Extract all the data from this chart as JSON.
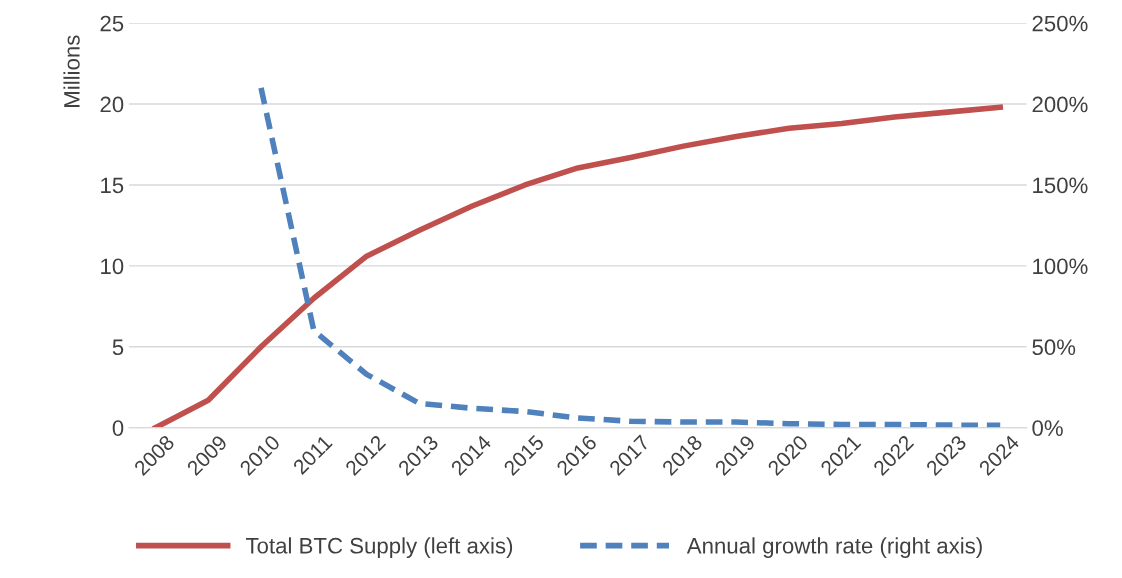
{
  "chart_data": {
    "type": "line",
    "ylabel": "Millions",
    "categories": [
      "2008",
      "2009",
      "2010",
      "2011",
      "2012",
      "2013",
      "2014",
      "2015",
      "2016",
      "2017",
      "2018",
      "2019",
      "2020",
      "2021",
      "2022",
      "2023",
      "2024"
    ],
    "series": [
      {
        "name": "Total BTC Supply (left axis)",
        "color": "#c0504d",
        "line_style": "solid",
        "values": [
          0,
          1.7,
          5.0,
          8.0,
          10.6,
          12.2,
          13.7,
          15.0,
          16.05,
          16.7,
          17.4,
          18.0,
          18.5,
          18.8,
          19.2,
          19.5,
          19.8
        ]
      },
      {
        "name": "Annual growth rate (right axis)",
        "color": "#4f81bd",
        "line_style": "dashed",
        "axis": "y2",
        "values": [
          null,
          null,
          210,
          60,
          33,
          15,
          12,
          10,
          6,
          4,
          3.5,
          3.5,
          2.5,
          2,
          2,
          1.6,
          1.5
        ]
      }
    ],
    "ylim": [
      0,
      25
    ],
    "yticks": [
      0,
      5,
      10,
      15,
      20,
      25
    ],
    "y2lim": [
      0,
      250
    ],
    "y2ticks": [
      {
        "value": 0,
        "label": "0%"
      },
      {
        "value": 50,
        "label": "50%"
      },
      {
        "value": 100,
        "label": "100%"
      },
      {
        "value": 150,
        "label": "150%"
      },
      {
        "value": 200,
        "label": "200%"
      },
      {
        "value": 250,
        "label": "250%"
      }
    ],
    "grid": "y",
    "legend": "bottom",
    "marker": "none"
  }
}
